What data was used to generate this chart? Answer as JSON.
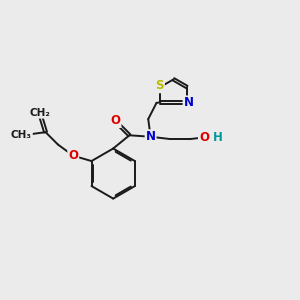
{
  "background_color": "#ebebeb",
  "bond_color": "#1a1a1a",
  "atom_colors": {
    "N": "#0000cc",
    "O": "#dd0000",
    "S": "#bbbb00",
    "H": "#009999",
    "C": "#1a1a1a"
  },
  "figsize": [
    3.0,
    3.0
  ],
  "dpi": 100
}
